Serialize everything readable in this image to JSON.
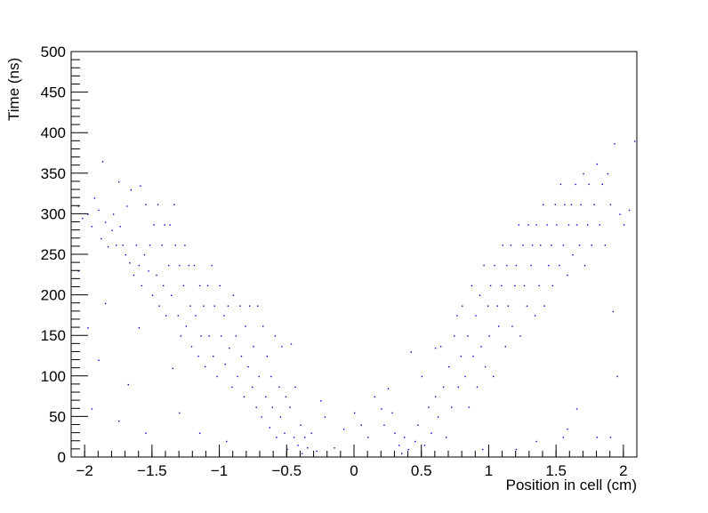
{
  "chart_data": {
    "type": "scatter",
    "title": "",
    "xlabel": "Position in cell (cm)",
    "ylabel": "Time (ns)",
    "xlim": [
      -2.1,
      2.1
    ],
    "ylim": [
      0,
      500
    ],
    "xticks": [
      -2,
      -1.5,
      -1,
      -0.5,
      0,
      0.5,
      1,
      1.5,
      2
    ],
    "xtick_labels": [
      "−2",
      "−1.5",
      "−1",
      "−0.5",
      "0",
      "0.5",
      "1",
      "1.5",
      "2"
    ],
    "yticks": [
      0,
      50,
      100,
      150,
      200,
      250,
      300,
      350,
      400,
      450,
      500
    ],
    "ytick_labels": [
      "0",
      "50",
      "100",
      "150",
      "200",
      "250",
      "300",
      "350",
      "400",
      "450",
      "500"
    ],
    "grid": false,
    "marker_color": "#0000cc",
    "points": [
      [
        -2.05,
        310
      ],
      [
        -2.02,
        295
      ],
      [
        -1.98,
        300
      ],
      [
        -1.95,
        285
      ],
      [
        -1.93,
        320
      ],
      [
        -1.9,
        305
      ],
      [
        -1.88,
        270
      ],
      [
        -1.87,
        365
      ],
      [
        -1.85,
        290
      ],
      [
        -1.83,
        260
      ],
      [
        -1.8,
        280
      ],
      [
        -1.79,
        300
      ],
      [
        -1.77,
        262
      ],
      [
        -1.75,
        340
      ],
      [
        -1.74,
        285
      ],
      [
        -1.72,
        262
      ],
      [
        -1.7,
        250
      ],
      [
        -1.69,
        310
      ],
      [
        -1.67,
        240
      ],
      [
        -1.66,
        330
      ],
      [
        -1.64,
        225
      ],
      [
        -1.62,
        262
      ],
      [
        -1.6,
        237
      ],
      [
        -1.59,
        335
      ],
      [
        -1.58,
        212
      ],
      [
        -1.56,
        250
      ],
      [
        -1.55,
        312
      ],
      [
        -1.53,
        230
      ],
      [
        -1.52,
        262
      ],
      [
        -1.5,
        200
      ],
      [
        -1.49,
        287
      ],
      [
        -1.47,
        225
      ],
      [
        -1.46,
        312
      ],
      [
        -1.45,
        187
      ],
      [
        -1.43,
        262
      ],
      [
        -1.42,
        212
      ],
      [
        -1.41,
        287
      ],
      [
        -1.4,
        175
      ],
      [
        -1.38,
        237
      ],
      [
        -1.37,
        287
      ],
      [
        -1.36,
        200
      ],
      [
        -1.34,
        312
      ],
      [
        -1.33,
        262
      ],
      [
        -1.31,
        175
      ],
      [
        -1.3,
        237
      ],
      [
        -1.29,
        150
      ],
      [
        -1.27,
        212
      ],
      [
        -1.26,
        262
      ],
      [
        -1.25,
        162
      ],
      [
        -1.23,
        237
      ],
      [
        -1.22,
        187
      ],
      [
        -1.21,
        137
      ],
      [
        -1.19,
        237
      ],
      [
        -1.18,
        175
      ],
      [
        -1.16,
        125
      ],
      [
        -1.15,
        212
      ],
      [
        -1.14,
        150
      ],
      [
        -1.12,
        187
      ],
      [
        -1.11,
        112
      ],
      [
        -1.09,
        212
      ],
      [
        -1.08,
        150
      ],
      [
        -1.06,
        237
      ],
      [
        -1.05,
        125
      ],
      [
        -1.04,
        187
      ],
      [
        -1.02,
        100
      ],
      [
        -1.0,
        212
      ],
      [
        -0.99,
        150
      ],
      [
        -0.97,
        175
      ],
      [
        -0.96,
        115
      ],
      [
        -0.94,
        187
      ],
      [
        -0.93,
        135
      ],
      [
        -0.91,
        87
      ],
      [
        -0.9,
        200
      ],
      [
        -0.88,
        150
      ],
      [
        -0.87,
        100
      ],
      [
        -0.85,
        187
      ],
      [
        -0.84,
        125
      ],
      [
        -0.82,
        75
      ],
      [
        -0.81,
        162
      ],
      [
        -0.79,
        112
      ],
      [
        -0.78,
        187
      ],
      [
        -0.76,
        87
      ],
      [
        -0.75,
        137
      ],
      [
        -0.73,
        62
      ],
      [
        -0.72,
        187
      ],
      [
        -0.71,
        100
      ],
      [
        -0.69,
        50
      ],
      [
        -0.68,
        162
      ],
      [
        -0.66,
        75
      ],
      [
        -0.65,
        125
      ],
      [
        -0.63,
        37
      ],
      [
        -0.62,
        100
      ],
      [
        -0.61,
        62
      ],
      [
        -0.59,
        150
      ],
      [
        -0.58,
        25
      ],
      [
        -0.56,
        87
      ],
      [
        -0.55,
        50
      ],
      [
        -0.54,
        137
      ],
      [
        -0.52,
        30
      ],
      [
        -0.51,
        75
      ],
      [
        -0.5,
        10
      ],
      [
        -0.48,
        62
      ],
      [
        -0.47,
        140
      ],
      [
        -0.45,
        25
      ],
      [
        -0.44,
        87
      ],
      [
        -0.42,
        15
      ],
      [
        -0.4,
        40
      ],
      [
        -0.39,
        5
      ],
      [
        -0.37,
        25
      ],
      [
        -0.35,
        12
      ],
      [
        -0.32,
        30
      ],
      [
        -0.28,
        8
      ],
      [
        -0.22,
        50
      ],
      [
        -0.15,
        12
      ],
      [
        -0.08,
        35
      ],
      [
        0.0,
        55
      ],
      [
        0.05,
        40
      ],
      [
        0.1,
        25
      ],
      [
        0.15,
        75
      ],
      [
        0.2,
        60
      ],
      [
        0.22,
        40
      ],
      [
        0.25,
        85
      ],
      [
        0.28,
        55
      ],
      [
        0.3,
        30
      ],
      [
        0.33,
        15
      ],
      [
        0.35,
        5
      ],
      [
        0.37,
        25
      ],
      [
        0.4,
        10
      ],
      [
        0.42,
        130
      ],
      [
        0.45,
        20
      ],
      [
        0.47,
        40
      ],
      [
        0.5,
        100
      ],
      [
        0.52,
        15
      ],
      [
        0.55,
        62
      ],
      [
        0.57,
        30
      ],
      [
        0.6,
        75
      ],
      [
        0.62,
        50
      ],
      [
        0.64,
        137
      ],
      [
        0.66,
        87
      ],
      [
        0.68,
        25
      ],
      [
        0.7,
        112
      ],
      [
        0.72,
        62
      ],
      [
        0.74,
        150
      ],
      [
        0.76,
        175
      ],
      [
        0.77,
        87
      ],
      [
        0.79,
        125
      ],
      [
        0.8,
        187
      ],
      [
        0.82,
        100
      ],
      [
        0.84,
        150
      ],
      [
        0.85,
        62
      ],
      [
        0.87,
        212
      ],
      [
        0.88,
        125
      ],
      [
        0.9,
        175
      ],
      [
        0.91,
        87
      ],
      [
        0.93,
        200
      ],
      [
        0.94,
        137
      ],
      [
        0.96,
        237
      ],
      [
        0.97,
        112
      ],
      [
        0.99,
        187
      ],
      [
        1.0,
        150
      ],
      [
        1.01,
        212
      ],
      [
        1.03,
        100
      ],
      [
        1.04,
        237
      ],
      [
        1.06,
        187
      ],
      [
        1.07,
        162
      ],
      [
        1.09,
        212
      ],
      [
        1.1,
        262
      ],
      [
        1.12,
        137
      ],
      [
        1.13,
        237
      ],
      [
        1.14,
        187
      ],
      [
        1.16,
        262
      ],
      [
        1.17,
        162
      ],
      [
        1.19,
        212
      ],
      [
        1.2,
        237
      ],
      [
        1.22,
        287
      ],
      [
        1.23,
        150
      ],
      [
        1.25,
        262
      ],
      [
        1.26,
        212
      ],
      [
        1.28,
        187
      ],
      [
        1.29,
        287
      ],
      [
        1.31,
        237
      ],
      [
        1.32,
        262
      ],
      [
        1.34,
        175
      ],
      [
        1.35,
        287
      ],
      [
        1.37,
        212
      ],
      [
        1.38,
        262
      ],
      [
        1.4,
        312
      ],
      [
        1.41,
        187
      ],
      [
        1.43,
        287
      ],
      [
        1.44,
        237
      ],
      [
        1.46,
        262
      ],
      [
        1.47,
        212
      ],
      [
        1.49,
        312
      ],
      [
        1.5,
        287
      ],
      [
        1.52,
        237
      ],
      [
        1.53,
        337
      ],
      [
        1.55,
        262
      ],
      [
        1.56,
        312
      ],
      [
        1.58,
        225
      ],
      [
        1.59,
        287
      ],
      [
        1.61,
        312
      ],
      [
        1.62,
        250
      ],
      [
        1.64,
        337
      ],
      [
        1.65,
        287
      ],
      [
        1.67,
        262
      ],
      [
        1.68,
        312
      ],
      [
        1.7,
        350
      ],
      [
        1.71,
        237
      ],
      [
        1.73,
        287
      ],
      [
        1.74,
        337
      ],
      [
        1.76,
        262
      ],
      [
        1.78,
        312
      ],
      [
        1.8,
        362
      ],
      [
        1.82,
        287
      ],
      [
        1.84,
        337
      ],
      [
        1.86,
        262
      ],
      [
        1.88,
        350
      ],
      [
        1.9,
        312
      ],
      [
        1.93,
        387
      ],
      [
        1.97,
        300
      ],
      [
        2.0,
        287
      ],
      [
        2.04,
        305
      ],
      [
        2.08,
        390
      ],
      [
        1.92,
        180
      ],
      [
        1.95,
        100
      ],
      [
        1.8,
        25
      ],
      [
        1.55,
        25
      ],
      [
        1.2,
        10
      ],
      [
        0.95,
        10
      ],
      [
        -1.95,
        60
      ],
      [
        -1.75,
        45
      ],
      [
        -1.55,
        30
      ],
      [
        -1.3,
        55
      ],
      [
        -1.15,
        30
      ],
      [
        -0.95,
        20
      ],
      [
        -1.9,
        120
      ],
      [
        -1.6,
        160
      ],
      [
        -1.35,
        110
      ],
      [
        -1.85,
        190
      ],
      [
        1.65,
        60
      ],
      [
        1.58,
        35
      ],
      [
        1.35,
        20
      ],
      [
        -0.25,
        70
      ],
      [
        0.6,
        135
      ],
      [
        -1.98,
        160
      ],
      [
        -2.05,
        230
      ],
      [
        1.9,
        25
      ],
      [
        -1.68,
        90
      ]
    ]
  }
}
